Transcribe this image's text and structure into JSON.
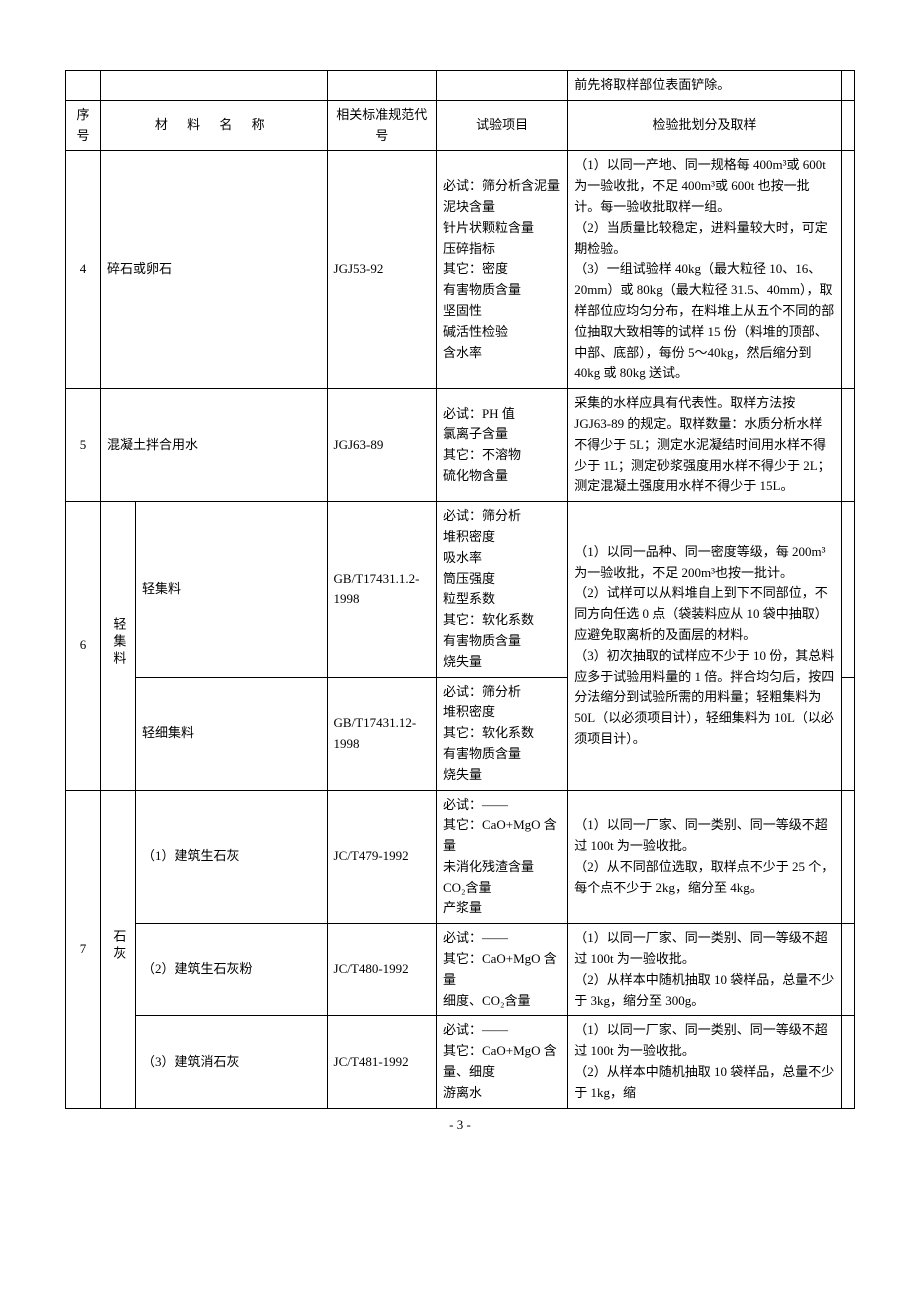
{
  "top_fragment": "前先将取样部位表面铲除。",
  "header": {
    "seq": "序号",
    "name": "材 料 名 称",
    "std": "相关标准规范代号",
    "test": "试验项目",
    "batch": "检验批划分及取样"
  },
  "rows": [
    {
      "seq": "4",
      "name": "碎石或卵石",
      "std": "JGJ53-92",
      "test": "必试：筛分析含泥量\n泥块含量\n针片状颗粒含量\n压碎指标\n其它：密度\n有害物质含量\n坚固性\n碱活性检验\n含水率",
      "batch": "（1）以同一产地、同一规格每 400m³或 600t 为一验收批，不足 400m³或 600t 也按一批计。每一验收批取样一组。\n（2）当质量比较稳定，进料量较大时，可定期检验。\n（3）一组试验样 40kg（最大粒径 10、16、20mm）或 80kg（最大粒径 31.5、40mm），取样部位应均匀分布，在料堆上从五个不同的部位抽取大致相等的试样 15 份（料堆的顶部、中部、底部），每份 5～40kg，然后缩分到 40kg 或 80kg 送试。"
    },
    {
      "seq": "5",
      "name": "混凝土拌合用水",
      "std": "JGJ63-89",
      "test": "必试：PH 值\n氯离子含量\n其它：不溶物\n硫化物含量",
      "batch": "采集的水样应具有代表性。取样方法按 JGJ63-89 的规定。取样数量：水质分析水样不得少于 5L；测定水泥凝结时间用水样不得少于 1L；测定砂浆强度用水样不得少于 2L；测定混凝土强度用水样不得少于 15L。"
    },
    {
      "seq": "6",
      "group": "轻集料",
      "sub": [
        {
          "name": "轻集料",
          "std": "GB/T17431.1.2-1998",
          "test": "必试：筛分析\n堆积密度\n吸水率\n筒压强度\n粒型系数\n其它：软化系数\n有害物质含量\n烧失量"
        },
        {
          "name": "轻细集料",
          "std": "GB/T17431.12-1998",
          "test": "必试：筛分析\n堆积密度\n其它：软化系数\n有害物质含量\n烧失量"
        }
      ],
      "batch": "（1）以同一品种、同一密度等级，每 200m³为一验收批，不足 200m³也按一批计。\n（2）试样可以从料堆自上到下不同部位，不同方向任选 0 点（袋装料应从 10 袋中抽取）应避免取离析的及面层的材料。\n（3）初次抽取的试样应不少于 10 份，其总料应多于试验用料量的 1 倍。拌合均匀后，按四分法缩分到试验所需的用料量；轻粗集料为 50L（以必须项目计），轻细集料为 10L（以必须项目计）。"
    },
    {
      "seq": "7",
      "group": "石灰",
      "sub": [
        {
          "name": "（1）建筑生石灰",
          "std": "JC/T479-1992",
          "test": "必试：——\n其它：CaO+MgO 含量\n未消化残渣含量\nCO₂含量\n产浆量",
          "batch": "（1）以同一厂家、同一类别、同一等级不超过 100t 为一验收批。\n（2）从不同部位选取，取样点不少于 25 个，每个点不少于 2kg，缩分至 4kg。"
        },
        {
          "name": "（2）建筑生石灰粉",
          "std": "JC/T480-1992",
          "test": "必试：——\n其它：CaO+MgO 含量\n细度、CO₂含量",
          "batch": "（1）以同一厂家、同一类别、同一等级不超过 100t 为一验收批。\n（2）从样本中随机抽取 10 袋样品，总量不少于 3kg，缩分至 300g。"
        },
        {
          "name": "（3）建筑消石灰",
          "std": "JC/T481-1992",
          "test": "必试：——\n其它：CaO+MgO 含量、细度\n游离水",
          "batch": "（1）以同一厂家、同一类别、同一等级不超过 100t 为一验收批。\n（2）从样本中随机抽取 10 袋样品，总量不少于 1kg，缩"
        }
      ]
    }
  ],
  "page_number": "- 3 -"
}
